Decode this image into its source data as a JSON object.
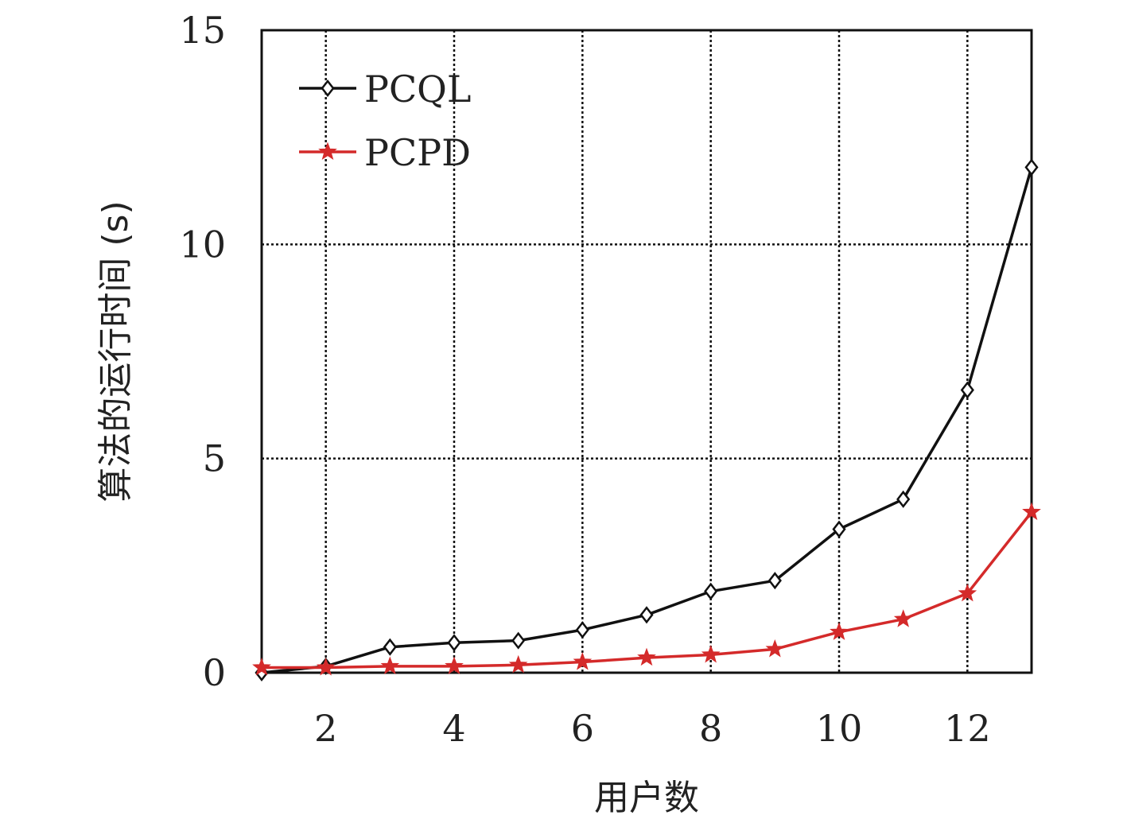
{
  "chart_data": {
    "type": "line",
    "title": "",
    "xlabel": "用户数",
    "ylabel": "算法的运行时间 (s)",
    "xlim": [
      1,
      13
    ],
    "ylim": [
      0,
      15
    ],
    "xticks": [
      2,
      4,
      6,
      8,
      10,
      12
    ],
    "yticks": [
      0,
      5,
      10,
      15
    ],
    "grid": true,
    "legend_position": "top-left",
    "x": [
      1,
      2,
      3,
      4,
      5,
      6,
      7,
      8,
      9,
      10,
      11,
      12,
      13
    ],
    "series": [
      {
        "name": "PCQL",
        "color": "#111111",
        "marker": "diamond",
        "values": [
          0.0,
          0.15,
          0.6,
          0.7,
          0.75,
          1.0,
          1.35,
          1.9,
          2.15,
          3.35,
          4.05,
          6.6,
          11.8
        ]
      },
      {
        "name": "PCPD",
        "color": "#d42a2a",
        "marker": "star",
        "values": [
          0.12,
          0.12,
          0.15,
          0.15,
          0.18,
          0.25,
          0.35,
          0.42,
          0.55,
          0.95,
          1.25,
          1.85,
          3.75
        ]
      }
    ]
  }
}
